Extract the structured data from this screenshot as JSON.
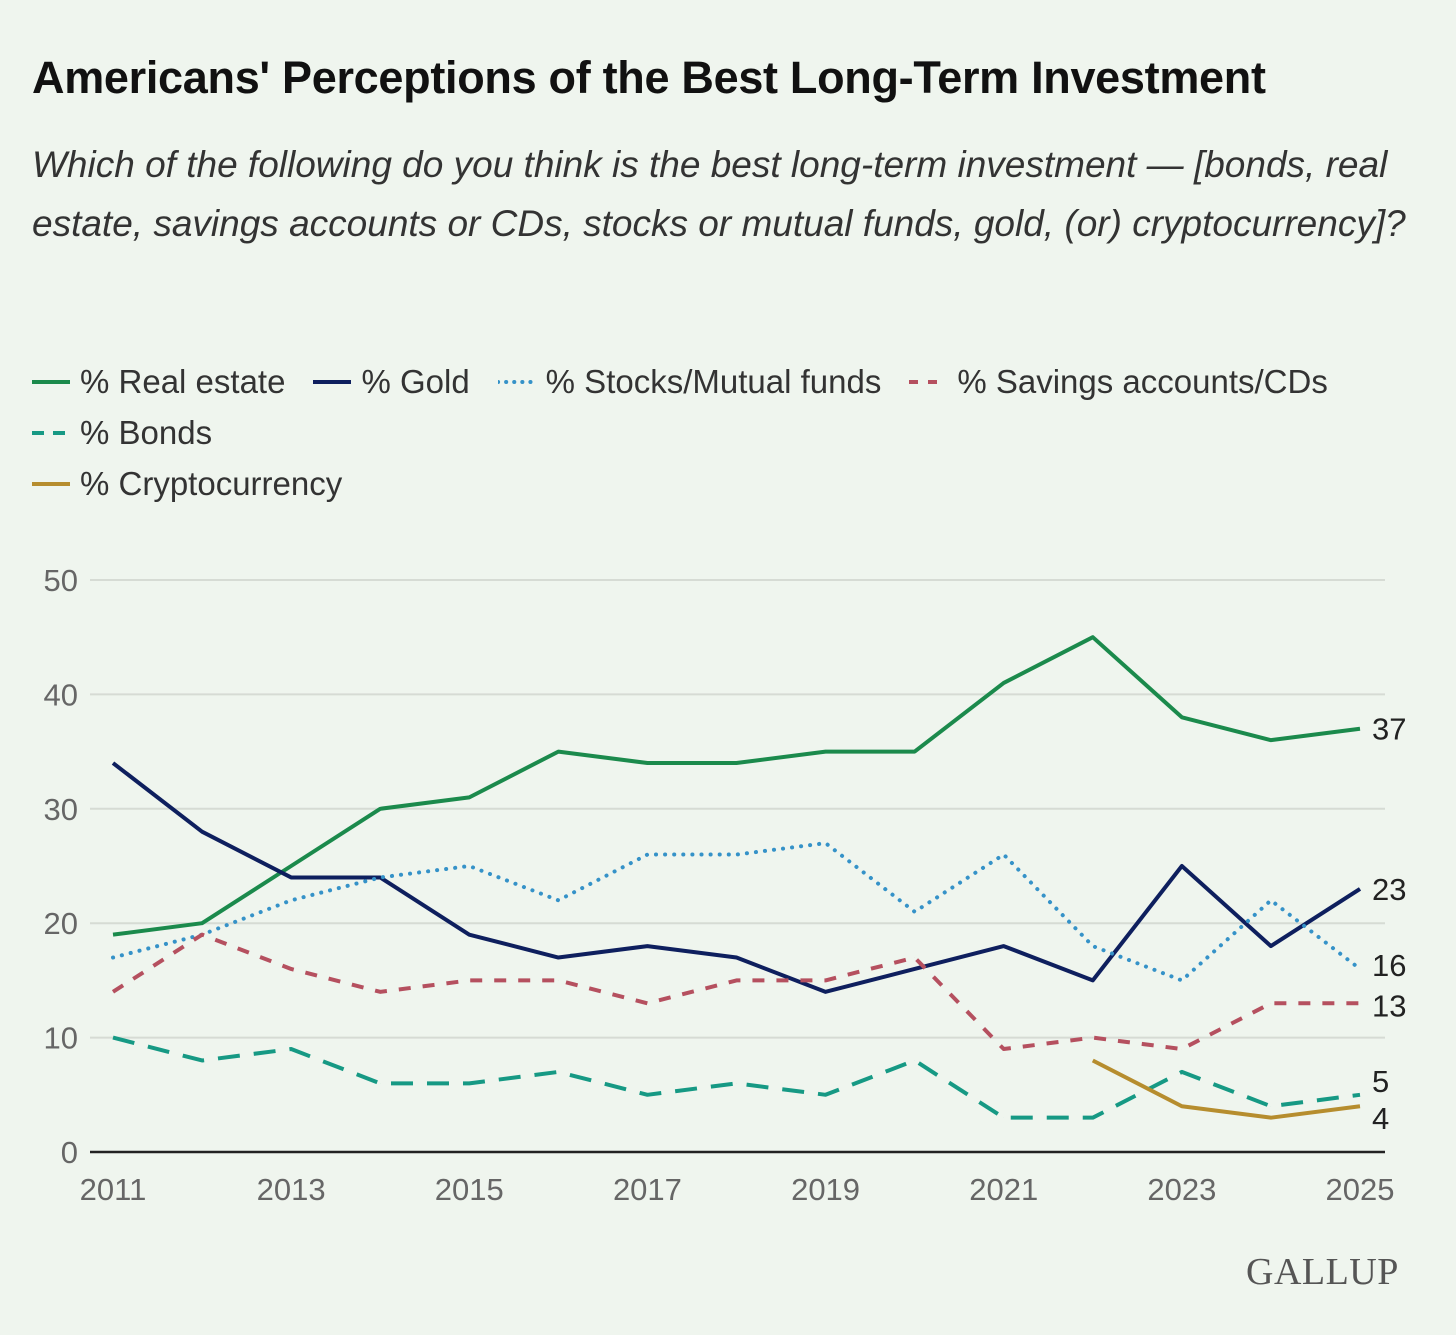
{
  "chart_data": {
    "type": "line",
    "title": "Americans' Perceptions of the Best Long-Term Investment",
    "subtitle": "Which of the following do you think is the best long-term investment — [bonds, real estate, savings accounts or CDs, stocks or mutual funds, gold, (or) cryptocurrency]?",
    "xlabel": "",
    "ylabel": "",
    "ylim": [
      0,
      50
    ],
    "yticks": [
      "0",
      "10",
      "20",
      "30",
      "40",
      "50"
    ],
    "xticks": [
      "2011",
      "2013",
      "2015",
      "2017",
      "2019",
      "2021",
      "2023",
      "2025"
    ],
    "x": [
      2011,
      2012,
      2013,
      2014,
      2015,
      2016,
      2017,
      2018,
      2019,
      2020,
      2021,
      2022,
      2023,
      2024,
      2025
    ],
    "grid": true,
    "legend_position": "top-left",
    "series": [
      {
        "name": "% Real estate",
        "color": "#1b8a4c",
        "dash": "solid",
        "end_label": "37",
        "values": [
          19,
          20,
          25,
          30,
          31,
          35,
          34,
          34,
          35,
          35,
          41,
          45,
          38,
          36,
          37
        ]
      },
      {
        "name": "% Gold",
        "color": "#0e1f5e",
        "dash": "solid",
        "end_label": "23",
        "values": [
          34,
          28,
          24,
          24,
          19,
          17,
          18,
          17,
          14,
          16,
          18,
          15,
          25,
          18,
          23
        ]
      },
      {
        "name": "% Stocks/Mutual funds",
        "color": "#3592c8",
        "dash": "dotted",
        "end_label": "16",
        "values": [
          17,
          19,
          22,
          24,
          25,
          22,
          26,
          26,
          27,
          21,
          26,
          18,
          15,
          22,
          16
        ]
      },
      {
        "name": "% Savings accounts/CDs",
        "color": "#b5505f",
        "dash": "dashed",
        "end_label": "13",
        "values": [
          14,
          19,
          16,
          14,
          15,
          15,
          13,
          15,
          15,
          17,
          9,
          10,
          9,
          13,
          13
        ]
      },
      {
        "name": "% Bonds",
        "color": "#169984",
        "dash": "longdash",
        "end_label": "5",
        "values": [
          10,
          8,
          9,
          6,
          6,
          7,
          5,
          6,
          5,
          8,
          3,
          3,
          7,
          4,
          5
        ]
      },
      {
        "name": "% Cryptocurrency",
        "color": "#b68d2e",
        "dash": "solid",
        "end_label": "4",
        "values": [
          null,
          null,
          null,
          null,
          null,
          null,
          null,
          null,
          null,
          null,
          null,
          8,
          4,
          3,
          4
        ]
      }
    ]
  },
  "logo": "GALLUP"
}
